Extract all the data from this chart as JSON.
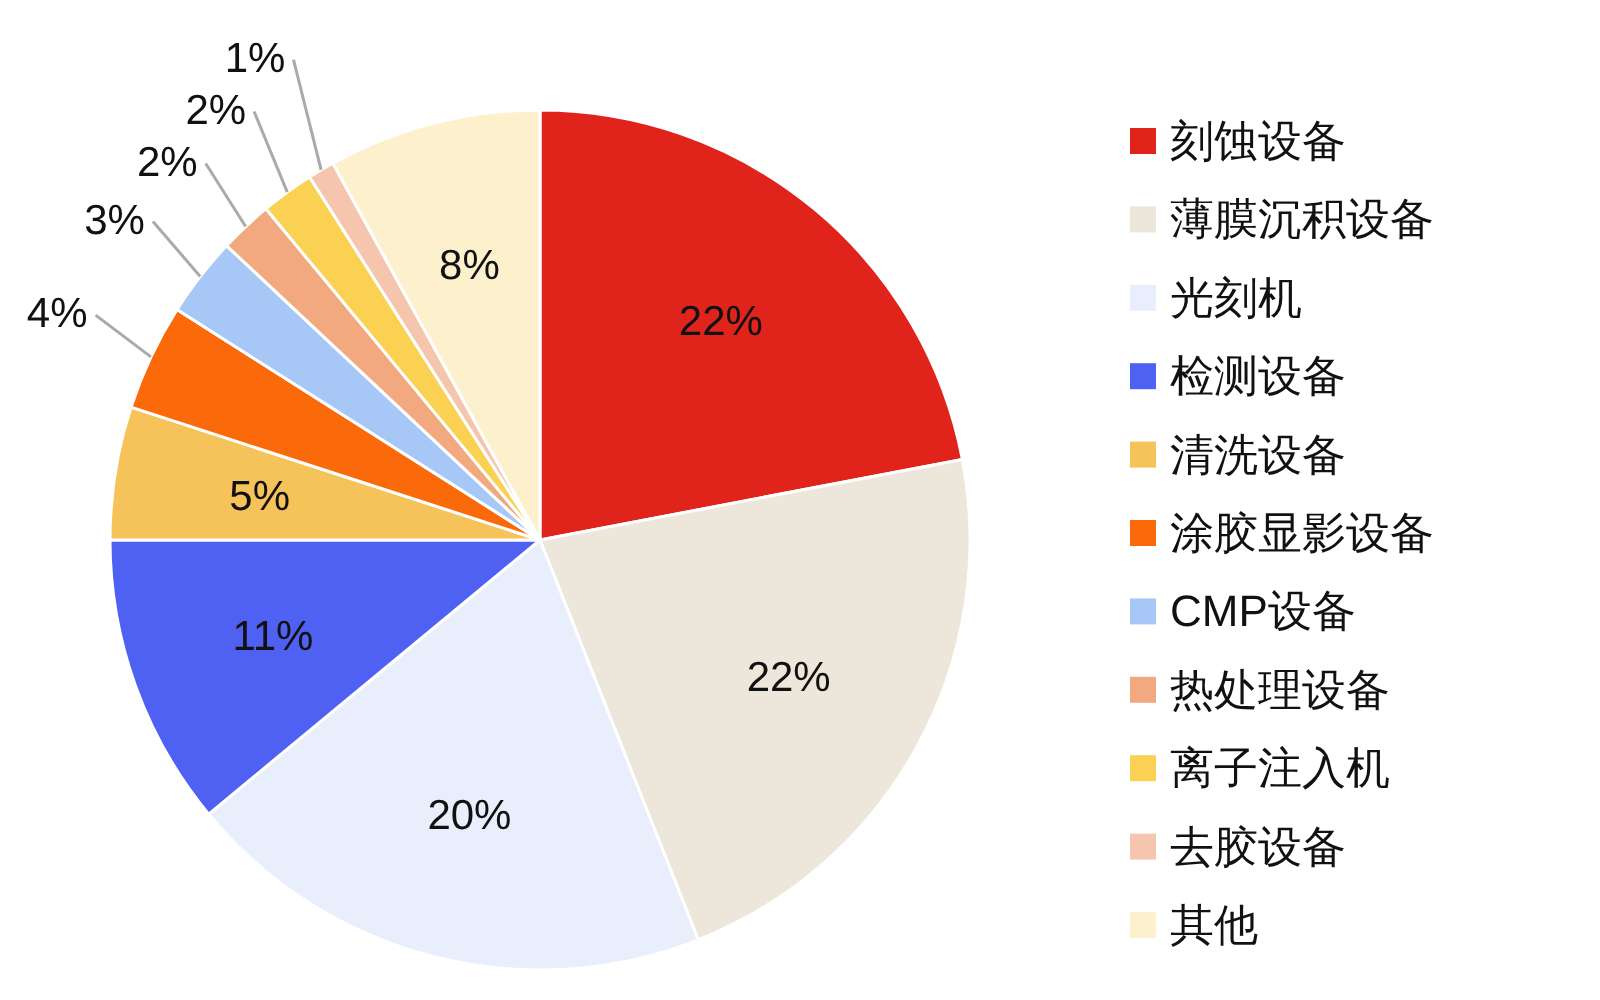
{
  "chart_data": {
    "type": "pie",
    "categories": [
      "刻蚀设备",
      "薄膜沉积设备",
      "光刻机",
      "检测设备",
      "清洗设备",
      "涂胶显影设备",
      "CMP设备",
      "热处理设备",
      "离子注入机",
      "去胶设备",
      "其他"
    ],
    "values": [
      22,
      22,
      20,
      11,
      5,
      4,
      3,
      2,
      2,
      1,
      8
    ],
    "colors": [
      "#e0241b",
      "#ede6da",
      "#e8eefb",
      "#4f61f2",
      "#f6c25a",
      "#fa6a0a",
      "#a7c8f7",
      "#f2a97f",
      "#fbd154",
      "#f6c5ad",
      "#fdf1cd"
    ],
    "value_labels": [
      "22%",
      "22%",
      "20%",
      "11%",
      "5%",
      "4%",
      "3%",
      "2%",
      "2%",
      "1%",
      "8%"
    ],
    "legend": "right"
  }
}
